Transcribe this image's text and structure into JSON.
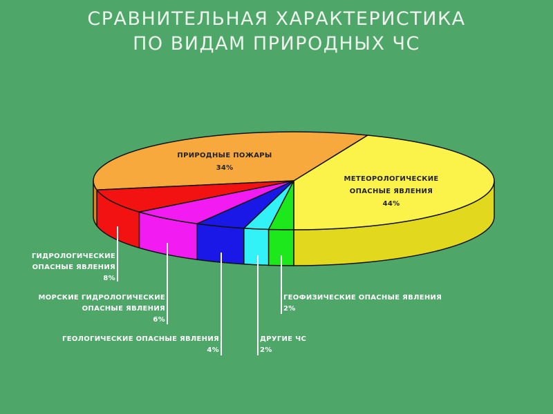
{
  "title": {
    "line1": "СРАВНИТЕЛЬНАЯ ХАРАКТЕРИСТИКА",
    "line2": "ПО ВИДАМ ПРИРОДНЫХ ЧС"
  },
  "chart_data": {
    "type": "pie",
    "style": "3d",
    "slices": [
      {
        "label": [
          "МЕТЕОРОЛОГИЧЕСКИЕ",
          "ОПАСНЫЕ ЯВЛЕНИЯ"
        ],
        "value": 44,
        "pct": "44%",
        "color": "#fbf34a",
        "side": "#e2d81e",
        "label_position": "inside"
      },
      {
        "label": [
          "ПРИРОДНЫЕ ПОЖАРЫ"
        ],
        "value": 34,
        "pct": "34%",
        "color": "#f7a93d",
        "side": "#d98a1e",
        "label_position": "inside"
      },
      {
        "label": [
          "ГИДРОЛОГИЧЕСКИЕ",
          "ОПАСНЫЕ ЯВЛЕНИЯ"
        ],
        "value": 8,
        "pct": "8%",
        "color": "#f21212",
        "side": "#f21212",
        "label_position": "outside"
      },
      {
        "label": [
          "МОРСКИЕ ГИДРОЛОГИЧЕСКИЕ",
          "ОПАСНЫЕ ЯВЛЕНИЯ"
        ],
        "value": 6,
        "pct": "6%",
        "color": "#f21bf2",
        "side": "#f21bf2",
        "label_position": "outside"
      },
      {
        "label": [
          "ГЕОЛОГИЧЕСКИЕ ОПАСНЫЕ ЯВЛЕНИЯ"
        ],
        "value": 4,
        "pct": "4%",
        "color": "#1a18e6",
        "side": "#1a18e6",
        "label_position": "outside"
      },
      {
        "label": [
          "ДРУГИЕ ЧС"
        ],
        "value": 2,
        "pct": "2%",
        "color": "#33f2f7",
        "side": "#33f2f7",
        "label_position": "outside"
      },
      {
        "label": [
          "ГЕОФИЗИЧЕСКИЕ ОПАСНЫЕ ЯВЛЕНИЯ"
        ],
        "value": 2,
        "pct": "2%",
        "color": "#1ce81c",
        "side": "#1ce81c",
        "label_position": "outside"
      }
    ]
  },
  "colors": {
    "background": "#4ea669",
    "title": "#eef3ee",
    "outline": "#111111"
  }
}
